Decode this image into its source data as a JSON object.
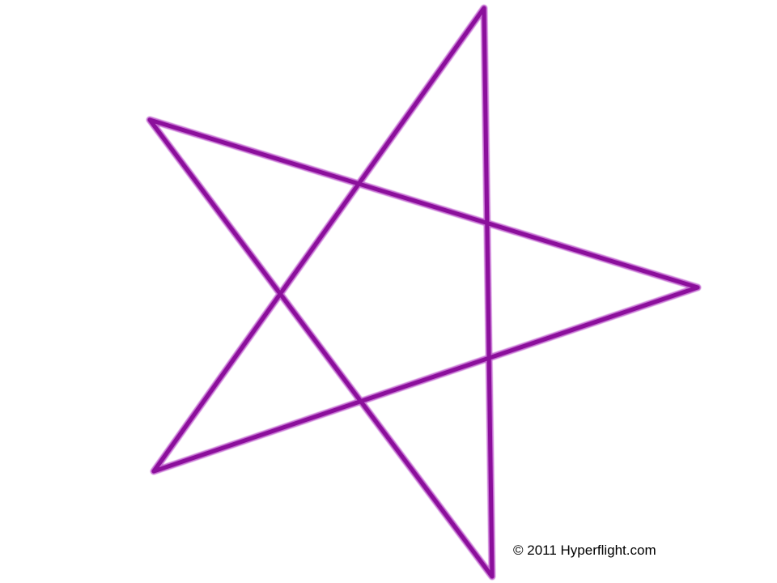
{
  "image": {
    "background_color": "#ffffff",
    "star_stroke_color": "#8b0f9b",
    "star_outline_color": "#c36bd0"
  },
  "caption": {
    "copyright_text": "© 2011 Hyperflight.com"
  }
}
